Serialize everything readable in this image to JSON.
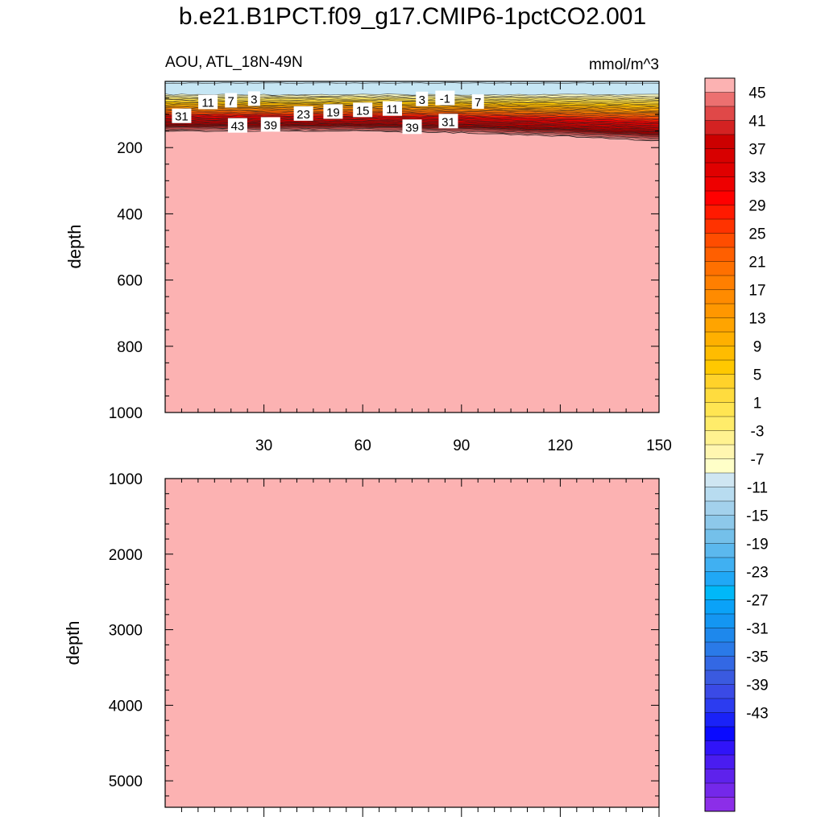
{
  "figure": {
    "title": "b.e21.B1PCT.f09_g17.CMIP6-1pctCO2.001",
    "subtitle_left": "AOU, ATL_18N-49N",
    "subtitle_right": "mmol/m^3"
  },
  "chart_data": [
    {
      "type": "contour",
      "title": "AOU, ATL_18N-49N",
      "units": "mmol/m^3",
      "xlabel": "",
      "ylabel": "depth",
      "xlim": [
        0,
        150
      ],
      "ylim": [
        1000,
        0
      ],
      "x_ticks": [
        30,
        60,
        90,
        120,
        150
      ],
      "x_tick_labels": [
        "30",
        "60",
        "90",
        "120",
        "150"
      ],
      "y_ticks": [
        200,
        400,
        600,
        800,
        1000
      ],
      "y_tick_labels": [
        "200",
        "400",
        "600",
        "800",
        "1000"
      ],
      "surface_layer": {
        "depth_range": [
          0,
          40
        ],
        "value_range": [
          -3,
          -1
        ]
      },
      "gradient_layer_depth_range": [
        40,
        190
      ],
      "deep_value": "> 45",
      "boundary_depth": [
        [
          0,
          150
        ],
        [
          30,
          150
        ],
        [
          60,
          150
        ],
        [
          90,
          155
        ],
        [
          120,
          165
        ],
        [
          150,
          180
        ]
      ],
      "contour_labels": [
        {
          "text": "11",
          "x": 13,
          "depth": 62
        },
        {
          "text": "7",
          "x": 20,
          "depth": 57
        },
        {
          "text": "3",
          "x": 27,
          "depth": 52
        },
        {
          "text": "31",
          "x": 5,
          "depth": 104
        },
        {
          "text": "43",
          "x": 22,
          "depth": 133
        },
        {
          "text": "39",
          "x": 32,
          "depth": 130
        },
        {
          "text": "23",
          "x": 42,
          "depth": 97
        },
        {
          "text": "19",
          "x": 51,
          "depth": 91
        },
        {
          "text": "15",
          "x": 60,
          "depth": 86
        },
        {
          "text": "11",
          "x": 69,
          "depth": 82
        },
        {
          "text": "3",
          "x": 78,
          "depth": 53
        },
        {
          "text": "-1",
          "x": 85,
          "depth": 50
        },
        {
          "text": "7",
          "x": 95,
          "depth": 61
        },
        {
          "text": "39",
          "x": 75,
          "depth": 137
        },
        {
          "text": "31",
          "x": 86,
          "depth": 120
        }
      ]
    },
    {
      "type": "contour",
      "xlabel": "",
      "ylabel": "depth",
      "xlim": [
        0,
        150
      ],
      "ylim": [
        5350,
        1000
      ],
      "x_ticks": [
        30,
        60,
        90,
        120,
        150
      ],
      "y_ticks": [
        1000,
        2000,
        3000,
        4000,
        5000
      ],
      "y_tick_labels": [
        "1000",
        "2000",
        "3000",
        "4000",
        "5000"
      ],
      "deep_value": "> 45"
    }
  ],
  "colorbar": {
    "labels": [
      "45",
      "41",
      "37",
      "33",
      "29",
      "25",
      "21",
      "17",
      "13",
      "9",
      "5",
      "1",
      "-3",
      "-7",
      "-11",
      "-15",
      "-19",
      "-23",
      "-27",
      "-31",
      "-35",
      "-39",
      "-43"
    ],
    "colors": [
      "#fcb2b2",
      "#ec7070",
      "#e04848",
      "#d42222",
      "#cc0000",
      "#d80000",
      "#e00000",
      "#ee0000",
      "#ff0000",
      "#ff1a00",
      "#ff3300",
      "#ff4d00",
      "#ff5f00",
      "#ff7000",
      "#ff7f00",
      "#ff8b00",
      "#ff9700",
      "#ffa400",
      "#ffb000",
      "#ffbc00",
      "#ffc800",
      "#ffd22a",
      "#ffdc3e",
      "#ffe552",
      "#ffec6a",
      "#fff290",
      "#fff6b0",
      "#ffffc8",
      "#cfe6f2",
      "#b8dcf0",
      "#a3d1ec",
      "#8dc8ea",
      "#74c0ea",
      "#5bb8ee",
      "#40b0f2",
      "#20a8f6",
      "#00b8f8",
      "#0aa2f8",
      "#1496f2",
      "#1e88ec",
      "#2a7ae8",
      "#3368e4",
      "#3a5ae0",
      "#3a4ae6",
      "#2c3cf0",
      "#1a22f8",
      "#0a0aff",
      "#3014f8",
      "#4a1cf0",
      "#5e22ec",
      "#7428ea",
      "#8c2ee8"
    ]
  }
}
